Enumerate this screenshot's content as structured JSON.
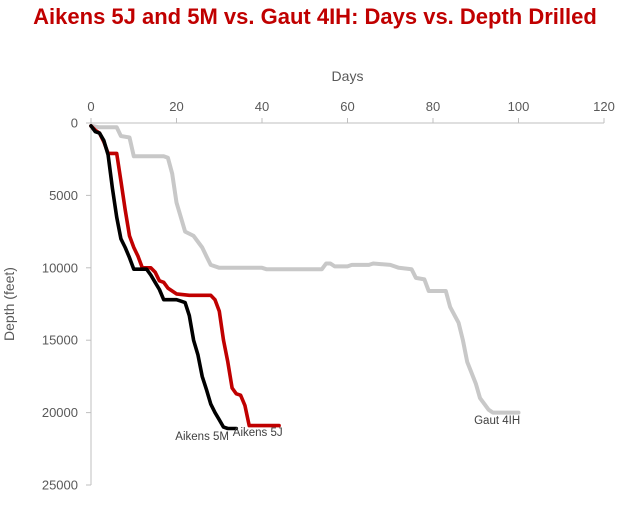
{
  "chart_data": {
    "type": "line",
    "title": "Aikens 5J and 5M vs. Gaut 4IH: Days vs. Depth Drilled",
    "xlabel": "Days",
    "ylabel": "Depth (feet)",
    "xlim": [
      0,
      120
    ],
    "ylim": [
      0,
      25000
    ],
    "y_inverted": true,
    "x_axis_position": "top",
    "x_ticks": [
      0,
      20,
      40,
      60,
      80,
      100,
      120
    ],
    "y_ticks": [
      0,
      5000,
      10000,
      15000,
      20000,
      25000
    ],
    "grid": false,
    "legend": "none (series labeled at line ends)",
    "series": [
      {
        "name": "Gaut 4IH",
        "color": "#c8c8c8",
        "points": [
          [
            0,
            200
          ],
          [
            2,
            300
          ],
          [
            6,
            300
          ],
          [
            7,
            900
          ],
          [
            9,
            1000
          ],
          [
            10,
            2300
          ],
          [
            17,
            2300
          ],
          [
            18,
            2400
          ],
          [
            19,
            3500
          ],
          [
            20,
            5500
          ],
          [
            21,
            6500
          ],
          [
            22,
            7500
          ],
          [
            24,
            7800
          ],
          [
            26,
            8600
          ],
          [
            27,
            9200
          ],
          [
            28,
            9800
          ],
          [
            30,
            10000
          ],
          [
            40,
            10000
          ],
          [
            41,
            10100
          ],
          [
            54,
            10100
          ],
          [
            55,
            9700
          ],
          [
            56,
            9700
          ],
          [
            57,
            9900
          ],
          [
            60,
            9900
          ],
          [
            61,
            9800
          ],
          [
            65,
            9800
          ],
          [
            66,
            9700
          ],
          [
            70,
            9800
          ],
          [
            72,
            10000
          ],
          [
            75,
            10100
          ],
          [
            76,
            10700
          ],
          [
            78,
            10800
          ],
          [
            79,
            11600
          ],
          [
            83,
            11600
          ],
          [
            84,
            12700
          ],
          [
            86,
            13800
          ],
          [
            87,
            15000
          ],
          [
            88,
            16500
          ],
          [
            90,
            18000
          ],
          [
            91,
            19000
          ],
          [
            93,
            19800
          ],
          [
            94,
            20000
          ],
          [
            100,
            20000
          ]
        ]
      },
      {
        "name": "Aikens 5J",
        "color": "#c00000",
        "points": [
          [
            0,
            200
          ],
          [
            1,
            500
          ],
          [
            2,
            700
          ],
          [
            3,
            1300
          ],
          [
            4,
            2100
          ],
          [
            6,
            2100
          ],
          [
            7,
            4000
          ],
          [
            8,
            6000
          ],
          [
            9,
            7800
          ],
          [
            10,
            8600
          ],
          [
            11,
            9200
          ],
          [
            12,
            10000
          ],
          [
            14,
            10000
          ],
          [
            15,
            10300
          ],
          [
            16,
            10900
          ],
          [
            17,
            11000
          ],
          [
            18,
            11400
          ],
          [
            20,
            11800
          ],
          [
            23,
            11900
          ],
          [
            28,
            11900
          ],
          [
            29,
            12200
          ],
          [
            30,
            13000
          ],
          [
            31,
            15000
          ],
          [
            32,
            16500
          ],
          [
            33,
            18300
          ],
          [
            34,
            18700
          ],
          [
            35,
            18800
          ],
          [
            36,
            19500
          ],
          [
            37,
            20900
          ],
          [
            44,
            20900
          ]
        ]
      },
      {
        "name": "Aikens 5M",
        "color": "#000000",
        "points": [
          [
            0,
            200
          ],
          [
            1,
            600
          ],
          [
            2,
            700
          ],
          [
            3,
            1200
          ],
          [
            4,
            2200
          ],
          [
            5,
            4500
          ],
          [
            6,
            6500
          ],
          [
            7,
            8000
          ],
          [
            8,
            8600
          ],
          [
            9,
            9300
          ],
          [
            10,
            10100
          ],
          [
            13,
            10100
          ],
          [
            14,
            10500
          ],
          [
            15,
            11000
          ],
          [
            16,
            11500
          ],
          [
            17,
            12200
          ],
          [
            20,
            12200
          ],
          [
            21,
            12300
          ],
          [
            22,
            12400
          ],
          [
            23,
            13300
          ],
          [
            24,
            15000
          ],
          [
            25,
            16000
          ],
          [
            26,
            17500
          ],
          [
            27,
            18400
          ],
          [
            28,
            19400
          ],
          [
            29,
            20000
          ],
          [
            30,
            20500
          ],
          [
            31,
            21000
          ],
          [
            32,
            21100
          ],
          [
            34,
            21100
          ]
        ]
      }
    ],
    "series_labels": [
      {
        "text": "Aikens 5M",
        "x": 26,
        "y": 21900
      },
      {
        "text": "Aikens 5J",
        "x": 39,
        "y": 21600
      },
      {
        "text": "Gaut 4IH",
        "x": 95,
        "y": 20800
      }
    ]
  }
}
